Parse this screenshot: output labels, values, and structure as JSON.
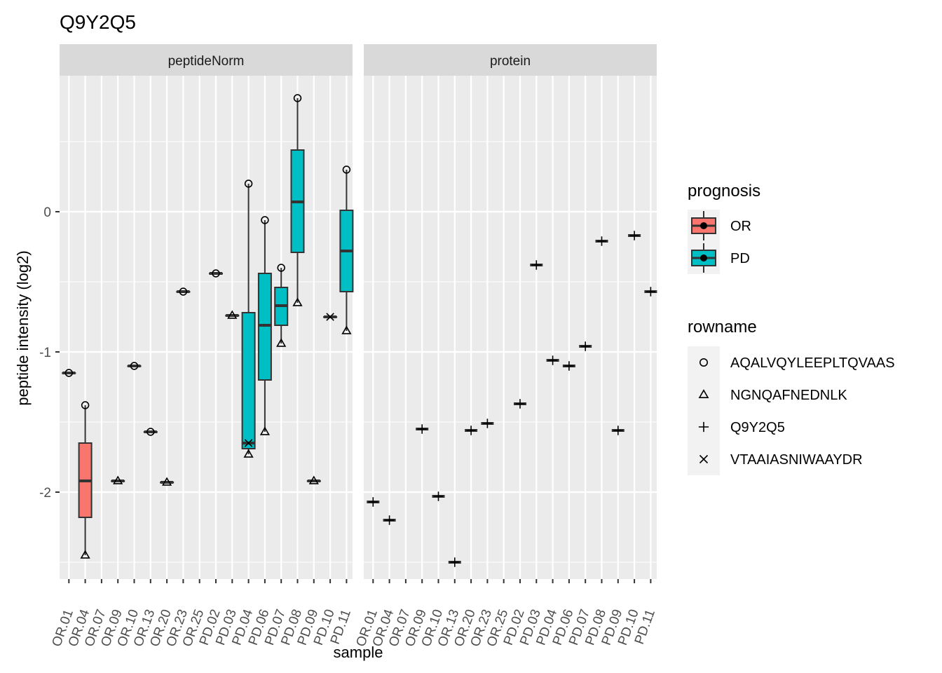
{
  "chart_data": {
    "type": "box",
    "title": "Q9Y2Q5",
    "xlabel": "sample",
    "ylabel": "peptide intensity (log2)",
    "ylim": [
      -2.62,
      0.97
    ],
    "y_ticks": [
      0,
      -1,
      -2
    ],
    "y_tick_labels": [
      "0",
      "-1",
      "-2"
    ],
    "grid": true,
    "categories": [
      "OR.01",
      "OR.04",
      "OR.07",
      "OR.09",
      "OR.10",
      "OR.13",
      "OR.20",
      "OR.23",
      "OR.25",
      "PD.02",
      "PD.03",
      "PD.04",
      "PD.06",
      "PD.07",
      "PD.08",
      "PD.09",
      "PD.10",
      "PD.11"
    ],
    "groups": {
      "OR": [
        "OR.01",
        "OR.04",
        "OR.07",
        "OR.09",
        "OR.10",
        "OR.13",
        "OR.20",
        "OR.23",
        "OR.25"
      ],
      "PD": [
        "PD.02",
        "PD.03",
        "PD.04",
        "PD.06",
        "PD.07",
        "PD.08",
        "PD.09",
        "PD.10",
        "PD.11"
      ]
    },
    "facets": [
      {
        "name": "peptideNorm",
        "points": [
          {
            "sample": "OR.01",
            "rowname": "AQALVQYLEEPLTQVAAS",
            "y": -1.15
          },
          {
            "sample": "OR.04",
            "rowname": "AQALVQYLEEPLTQVAAS",
            "y": -1.38
          },
          {
            "sample": "OR.04",
            "rowname": "NGNQAFNEDNLK",
            "y": -2.45
          },
          {
            "sample": "OR.09",
            "rowname": "NGNQAFNEDNLK",
            "y": -1.92
          },
          {
            "sample": "OR.10",
            "rowname": "AQALVQYLEEPLTQVAAS",
            "y": -1.1
          },
          {
            "sample": "OR.13",
            "rowname": "AQALVQYLEEPLTQVAAS",
            "y": -1.57
          },
          {
            "sample": "OR.20",
            "rowname": "NGNQAFNEDNLK",
            "y": -1.93
          },
          {
            "sample": "OR.23",
            "rowname": "AQALVQYLEEPLTQVAAS",
            "y": -0.57
          },
          {
            "sample": "PD.02",
            "rowname": "AQALVQYLEEPLTQVAAS",
            "y": -0.44
          },
          {
            "sample": "PD.03",
            "rowname": "NGNQAFNEDNLK",
            "y": -0.74
          },
          {
            "sample": "PD.04",
            "rowname": "AQALVQYLEEPLTQVAAS",
            "y": 0.2
          },
          {
            "sample": "PD.04",
            "rowname": "NGNQAFNEDNLK",
            "y": -1.73
          },
          {
            "sample": "PD.04",
            "rowname": "VTAAIASNIWAAYDR",
            "y": -1.65
          },
          {
            "sample": "PD.06",
            "rowname": "AQALVQYLEEPLTQVAAS",
            "y": -0.06
          },
          {
            "sample": "PD.06",
            "rowname": "NGNQAFNEDNLK",
            "y": -1.57
          },
          {
            "sample": "PD.07",
            "rowname": "AQALVQYLEEPLTQVAAS",
            "y": -0.4
          },
          {
            "sample": "PD.07",
            "rowname": "NGNQAFNEDNLK",
            "y": -0.94
          },
          {
            "sample": "PD.08",
            "rowname": "AQALVQYLEEPLTQVAAS",
            "y": 0.81
          },
          {
            "sample": "PD.08",
            "rowname": "NGNQAFNEDNLK",
            "y": -0.65
          },
          {
            "sample": "PD.09",
            "rowname": "NGNQAFNEDNLK",
            "y": -1.92
          },
          {
            "sample": "PD.10",
            "rowname": "VTAAIASNIWAAYDR",
            "y": -0.75
          },
          {
            "sample": "PD.11",
            "rowname": "AQALVQYLEEPLTQVAAS",
            "y": 0.3
          },
          {
            "sample": "PD.11",
            "rowname": "NGNQAFNEDNLK",
            "y": -0.85
          }
        ],
        "boxes": [
          {
            "sample": "OR.01",
            "prognosis": "OR",
            "q1": -1.15,
            "median": -1.15,
            "q3": -1.15,
            "lo": -1.15,
            "hi": -1.15
          },
          {
            "sample": "OR.04",
            "prognosis": "OR",
            "q1": -2.18,
            "median": -1.92,
            "q3": -1.65,
            "lo": -2.45,
            "hi": -1.38
          },
          {
            "sample": "OR.09",
            "prognosis": "OR",
            "q1": -1.92,
            "median": -1.92,
            "q3": -1.92,
            "lo": -1.92,
            "hi": -1.92
          },
          {
            "sample": "OR.10",
            "prognosis": "OR",
            "q1": -1.1,
            "median": -1.1,
            "q3": -1.1,
            "lo": -1.1,
            "hi": -1.1
          },
          {
            "sample": "OR.13",
            "prognosis": "OR",
            "q1": -1.57,
            "median": -1.57,
            "q3": -1.57,
            "lo": -1.57,
            "hi": -1.57
          },
          {
            "sample": "OR.20",
            "prognosis": "OR",
            "q1": -1.93,
            "median": -1.93,
            "q3": -1.93,
            "lo": -1.93,
            "hi": -1.93
          },
          {
            "sample": "OR.23",
            "prognosis": "OR",
            "q1": -0.57,
            "median": -0.57,
            "q3": -0.57,
            "lo": -0.57,
            "hi": -0.57
          },
          {
            "sample": "PD.02",
            "prognosis": "PD",
            "q1": -0.44,
            "median": -0.44,
            "q3": -0.44,
            "lo": -0.44,
            "hi": -0.44
          },
          {
            "sample": "PD.03",
            "prognosis": "PD",
            "q1": -0.74,
            "median": -0.74,
            "q3": -0.74,
            "lo": -0.74,
            "hi": -0.74
          },
          {
            "sample": "PD.04",
            "prognosis": "PD",
            "q1": -1.69,
            "median": -1.65,
            "q3": -0.72,
            "lo": -1.73,
            "hi": 0.2
          },
          {
            "sample": "PD.06",
            "prognosis": "PD",
            "q1": -1.2,
            "median": -0.81,
            "q3": -0.44,
            "lo": -1.57,
            "hi": -0.06
          },
          {
            "sample": "PD.07",
            "prognosis": "PD",
            "q1": -0.81,
            "median": -0.67,
            "q3": -0.54,
            "lo": -0.94,
            "hi": -0.4
          },
          {
            "sample": "PD.08",
            "prognosis": "PD",
            "q1": -0.29,
            "median": 0.07,
            "q3": 0.44,
            "lo": -0.65,
            "hi": 0.81
          },
          {
            "sample": "PD.09",
            "prognosis": "PD",
            "q1": -1.92,
            "median": -1.92,
            "q3": -1.92,
            "lo": -1.92,
            "hi": -1.92
          },
          {
            "sample": "PD.10",
            "prognosis": "PD",
            "q1": -0.75,
            "median": -0.75,
            "q3": -0.75,
            "lo": -0.75,
            "hi": -0.75
          },
          {
            "sample": "PD.11",
            "prognosis": "PD",
            "q1": -0.57,
            "median": -0.28,
            "q3": 0.01,
            "lo": -0.85,
            "hi": 0.3
          }
        ]
      },
      {
        "name": "protein",
        "points": [
          {
            "sample": "OR.01",
            "rowname": "Q9Y2Q5",
            "y": -2.07
          },
          {
            "sample": "OR.04",
            "rowname": "Q9Y2Q5",
            "y": -2.2
          },
          {
            "sample": "OR.09",
            "rowname": "Q9Y2Q5",
            "y": -1.55
          },
          {
            "sample": "OR.10",
            "rowname": "Q9Y2Q5",
            "y": -2.03
          },
          {
            "sample": "OR.13",
            "rowname": "Q9Y2Q5",
            "y": -2.5
          },
          {
            "sample": "OR.20",
            "rowname": "Q9Y2Q5",
            "y": -1.56
          },
          {
            "sample": "OR.23",
            "rowname": "Q9Y2Q5",
            "y": -1.51
          },
          {
            "sample": "PD.02",
            "rowname": "Q9Y2Q5",
            "y": -1.37
          },
          {
            "sample": "PD.03",
            "rowname": "Q9Y2Q5",
            "y": -0.38
          },
          {
            "sample": "PD.04",
            "rowname": "Q9Y2Q5",
            "y": -1.06
          },
          {
            "sample": "PD.06",
            "rowname": "Q9Y2Q5",
            "y": -1.1
          },
          {
            "sample": "PD.07",
            "rowname": "Q9Y2Q5",
            "y": -0.96
          },
          {
            "sample": "PD.08",
            "rowname": "Q9Y2Q5",
            "y": -0.21
          },
          {
            "sample": "PD.09",
            "rowname": "Q9Y2Q5",
            "y": -1.56
          },
          {
            "sample": "PD.10",
            "rowname": "Q9Y2Q5",
            "y": -0.17
          },
          {
            "sample": "PD.11",
            "rowname": "Q9Y2Q5",
            "y": -0.57
          }
        ]
      }
    ],
    "legend": {
      "placement": "right",
      "prognosis": {
        "title": "prognosis",
        "items": [
          {
            "label": "OR",
            "color": "#F8766D"
          },
          {
            "label": "PD",
            "color": "#00BFC4"
          }
        ]
      },
      "rowname": {
        "title": "rowname",
        "items": [
          {
            "label": "AQALVQYLEEPLTQVAAS",
            "shape": "circle"
          },
          {
            "label": "NGNQAFNEDNLK",
            "shape": "triangle"
          },
          {
            "label": "Q9Y2Q5",
            "shape": "plus"
          },
          {
            "label": "VTAAIASNIWAAYDR",
            "shape": "cross"
          }
        ]
      }
    }
  }
}
